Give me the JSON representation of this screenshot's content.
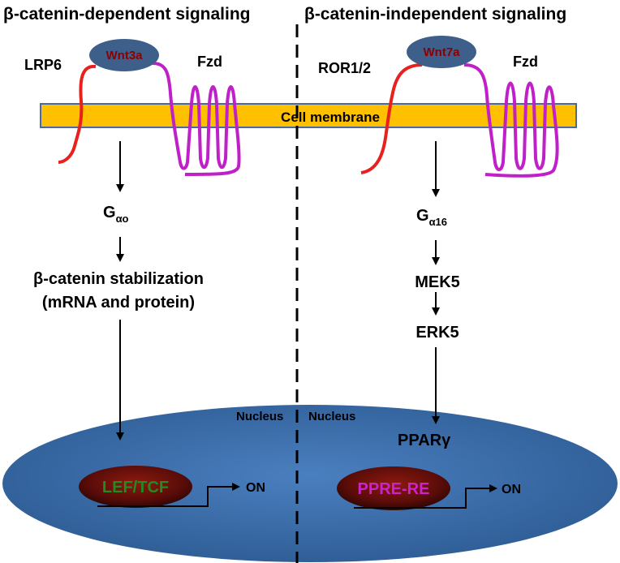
{
  "left": {
    "title": "β-catenin-dependent signaling",
    "ligand": "Wnt3a",
    "coreceptor": "LRP6",
    "receptor": "Fzd",
    "g_protein_base": "G",
    "g_protein_sub": "αo",
    "step1_line1": "β-catenin stabilization",
    "step1_line2": "(mRNA and protein)",
    "nucleus_label": "Nucleus",
    "tf": "LEF/TCF",
    "on": "ON"
  },
  "right": {
    "title": "β-catenin-independent signaling",
    "ligand": "Wnt7a",
    "coreceptor": "ROR1/2",
    "receptor": "Fzd",
    "g_protein_base": "G",
    "g_protein_sub": "α16",
    "step1": "MEK5",
    "step2": "ERK5",
    "nucleus_label": "Nucleus",
    "factor": "PPARγ",
    "tf": "PPRE-RE",
    "on": "ON"
  },
  "membrane_label": "Cell membrane",
  "colors": {
    "membrane": "#FFC000",
    "lrp": "#E8201E",
    "fzd": "#C020C8",
    "wnt_fill": "#3E5F8A",
    "wnt_text": "#8B0000",
    "nucleus": "#3A6EA5",
    "lef_text": "#228B22",
    "ppre_text": "#CC22CC",
    "tf_fill": "#6B0E0A"
  }
}
